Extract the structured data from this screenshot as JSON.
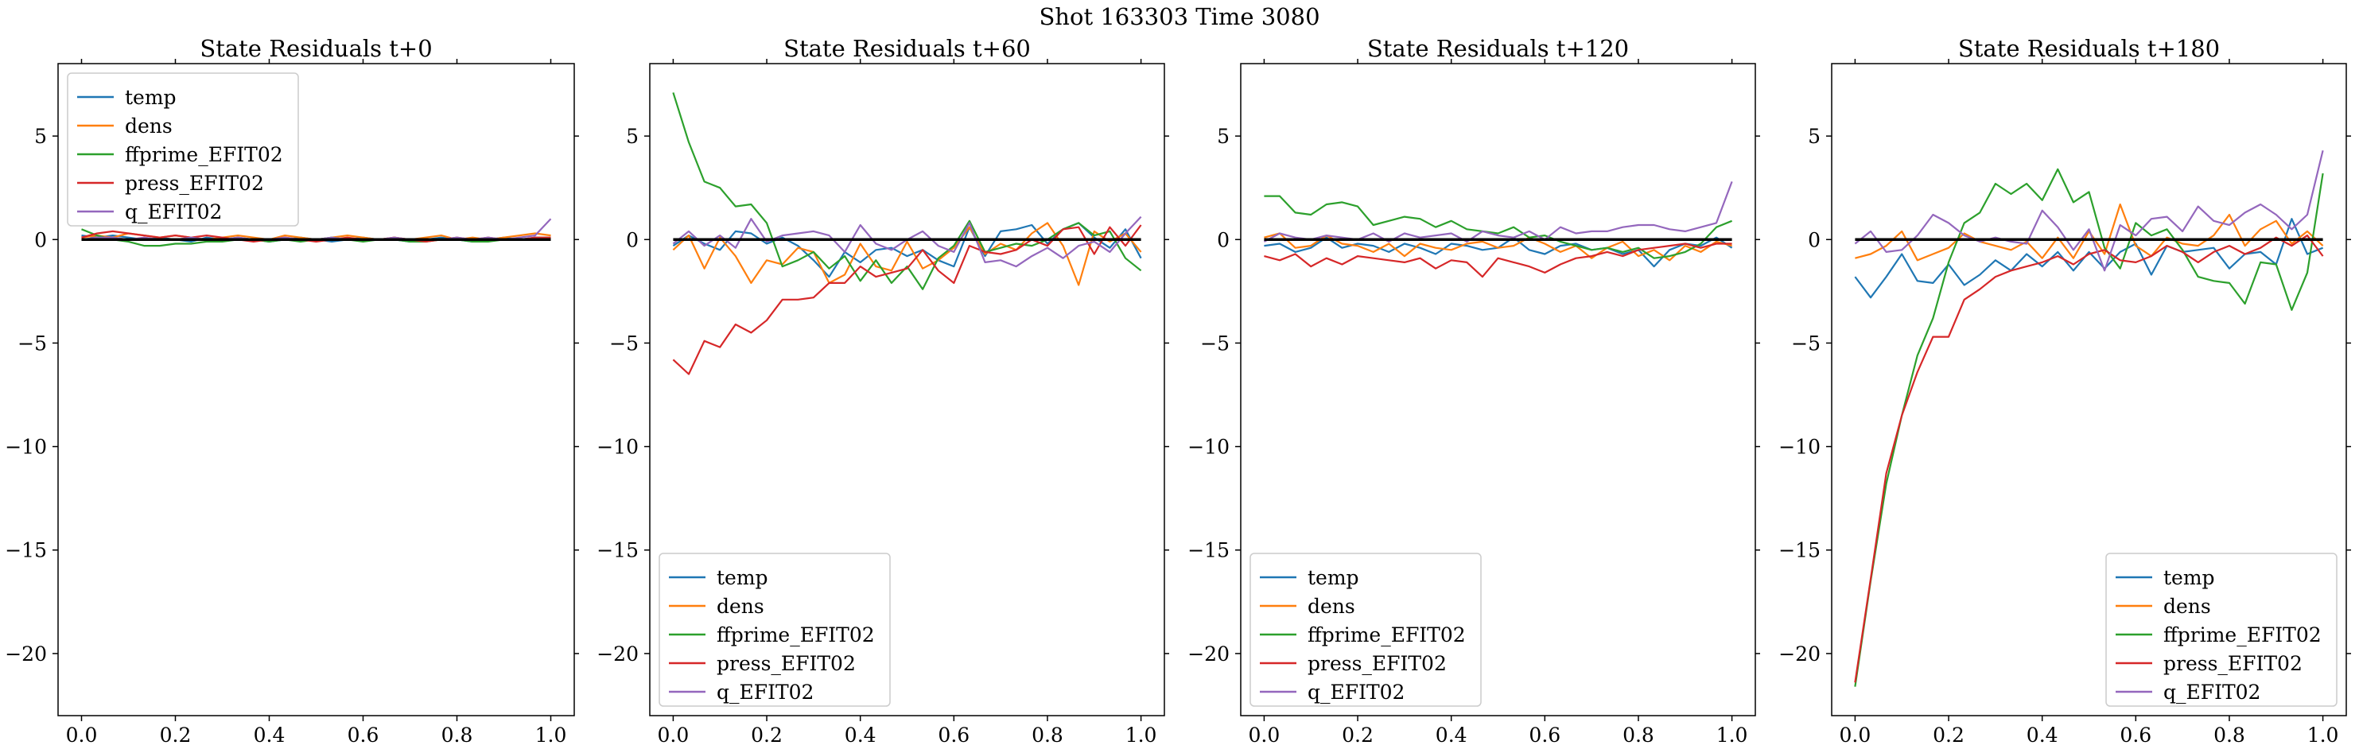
{
  "figure": {
    "suptitle": "Shot 163303   Time 3080"
  },
  "colors": {
    "temp": "#1f77b4",
    "dens": "#ff7f0e",
    "ffprime_EFIT02": "#2ca02c",
    "press_EFIT02": "#d62728",
    "q_EFIT02": "#9467bd",
    "zero_line": "#000000"
  },
  "chart_data": [
    {
      "type": "line",
      "title": "State Residuals t+0",
      "xlabel": "",
      "ylabel": "",
      "xlim": [
        -0.05,
        1.05
      ],
      "ylim": [
        -23,
        8.5
      ],
      "xticks": [
        "0.0",
        "0.2",
        "0.4",
        "0.6",
        "0.8",
        "1.0"
      ],
      "yticks": [
        "5",
        "0",
        "−5",
        "−10",
        "−15",
        "−20"
      ],
      "legend_position": "upper-left",
      "zero_line": true,
      "series": [
        {
          "name": "temp",
          "y": [
            0.2,
            0.1,
            0.2,
            0.1,
            0.0,
            0.1,
            0.0,
            -0.1,
            0.1,
            0.0,
            0.1,
            0.0,
            -0.1,
            0.0,
            0.1,
            0.0,
            -0.1,
            0.0,
            0.1,
            0.0,
            0.0,
            -0.1,
            0.0,
            0.1,
            0.0,
            -0.1,
            0.0,
            0.1,
            0.0,
            0.1,
            0.1
          ]
        },
        {
          "name": "dens",
          "y": [
            0.1,
            0.2,
            0.1,
            0.3,
            0.2,
            0.1,
            0.2,
            0.1,
            0.0,
            0.1,
            0.2,
            0.1,
            0.0,
            0.2,
            0.1,
            0.0,
            0.1,
            0.2,
            0.1,
            0.0,
            0.1,
            0.0,
            0.1,
            0.2,
            0.0,
            0.1,
            0.0,
            0.1,
            0.2,
            0.3,
            0.2
          ]
        },
        {
          "name": "ffprime_EFIT02",
          "y": [
            0.5,
            0.2,
            0.0,
            -0.1,
            -0.3,
            -0.3,
            -0.2,
            -0.2,
            -0.1,
            -0.1,
            0.0,
            0.0,
            -0.1,
            0.0,
            -0.1,
            0.0,
            0.1,
            0.0,
            -0.1,
            0.0,
            0.0,
            -0.1,
            -0.1,
            0.0,
            0.0,
            -0.1,
            -0.1,
            0.0,
            0.0,
            0.0,
            0.1
          ]
        },
        {
          "name": "press_EFIT02",
          "y": [
            0.1,
            0.3,
            0.4,
            0.3,
            0.2,
            0.1,
            0.2,
            0.1,
            0.2,
            0.1,
            0.0,
            -0.1,
            0.0,
            0.1,
            0.0,
            -0.1,
            0.0,
            0.1,
            0.0,
            0.0,
            0.1,
            0.0,
            -0.1,
            0.0,
            0.1,
            0.0,
            0.1,
            0.0,
            0.0,
            0.1,
            0.1
          ]
        },
        {
          "name": "q_EFIT02",
          "y": [
            0.0,
            0.1,
            0.1,
            0.0,
            0.1,
            0.0,
            0.0,
            0.1,
            0.0,
            0.0,
            0.1,
            0.0,
            0.0,
            0.1,
            0.0,
            0.0,
            0.1,
            0.0,
            0.0,
            0.0,
            0.1,
            0.0,
            0.0,
            0.0,
            0.1,
            0.0,
            0.1,
            0.0,
            0.1,
            0.2,
            1.0
          ]
        }
      ]
    },
    {
      "type": "line",
      "title": "State Residuals t+60",
      "xlabel": "",
      "ylabel": "",
      "xlim": [
        -0.05,
        1.05
      ],
      "ylim": [
        -23,
        8.5
      ],
      "xticks": [
        "0.0",
        "0.2",
        "0.4",
        "0.6",
        "0.8",
        "1.0"
      ],
      "yticks": [
        "5",
        "0",
        "−5",
        "−10",
        "−15",
        "−20"
      ],
      "legend_position": "lower-left",
      "zero_line": true,
      "series": [
        {
          "name": "temp",
          "y": [
            -0.3,
            0.2,
            -0.2,
            -0.5,
            0.4,
            0.3,
            -0.2,
            0.1,
            -0.3,
            -1.0,
            -1.8,
            -0.6,
            -1.1,
            -0.5,
            -0.4,
            -0.8,
            -0.5,
            -1.0,
            -1.3,
            0.6,
            -0.8,
            0.4,
            0.5,
            0.7,
            -0.2,
            0.5,
            0.8,
            0.1,
            -0.4,
            0.5,
            -0.9
          ]
        },
        {
          "name": "dens",
          "y": [
            -0.5,
            0.2,
            -1.4,
            0.1,
            -0.8,
            -2.1,
            -1.0,
            -1.2,
            -0.4,
            -0.6,
            -2.1,
            -1.7,
            -0.2,
            -1.3,
            -1.5,
            -0.1,
            -1.4,
            -1.0,
            -0.4,
            0.6,
            -0.7,
            -0.2,
            -0.5,
            0.3,
            0.8,
            -0.3,
            -2.2,
            0.4,
            -0.1,
            0.3,
            -0.6
          ]
        },
        {
          "name": "ffprime_EFIT02",
          "y": [
            7.1,
            4.7,
            2.8,
            2.5,
            1.6,
            1.7,
            0.8,
            -1.3,
            -1.0,
            -0.6,
            -1.4,
            -0.8,
            -2.0,
            -1.0,
            -2.1,
            -1.3,
            -2.4,
            -0.9,
            -0.3,
            0.9,
            -0.6,
            -0.4,
            -0.2,
            -0.3,
            0.0,
            0.5,
            0.8,
            0.2,
            0.4,
            -0.9,
            -1.5
          ]
        },
        {
          "name": "press_EFIT02",
          "y": [
            -5.8,
            -6.5,
            -4.9,
            -5.2,
            -4.1,
            -4.5,
            -3.9,
            -2.9,
            -2.9,
            -2.8,
            -2.1,
            -2.1,
            -1.3,
            -1.8,
            -1.6,
            -1.4,
            -0.5,
            -1.5,
            -2.1,
            -0.3,
            -0.6,
            -0.7,
            -0.5,
            0.0,
            -0.3,
            0.5,
            0.6,
            -0.7,
            0.6,
            -0.3,
            0.7
          ]
        },
        {
          "name": "q_EFIT02",
          "y": [
            -0.2,
            0.4,
            -0.3,
            0.2,
            -0.4,
            1.0,
            -0.1,
            0.2,
            0.3,
            0.4,
            0.2,
            -0.6,
            0.7,
            -0.2,
            -0.5,
            0.0,
            0.4,
            -0.3,
            -0.6,
            0.8,
            -1.1,
            -1.0,
            -1.3,
            -0.8,
            -0.4,
            -0.9,
            -0.3,
            -0.1,
            -0.6,
            0.3,
            1.1
          ]
        }
      ]
    },
    {
      "type": "line",
      "title": "State Residuals t+120",
      "xlabel": "",
      "ylabel": "",
      "xlim": [
        -0.05,
        1.05
      ],
      "ylim": [
        -23,
        8.5
      ],
      "xticks": [
        "0.0",
        "0.2",
        "0.4",
        "0.6",
        "0.8",
        "1.0"
      ],
      "yticks": [
        "5",
        "0",
        "−5",
        "−10",
        "−15",
        "−20"
      ],
      "legend_position": "lower-left",
      "zero_line": true,
      "series": [
        {
          "name": "temp",
          "y": [
            -0.3,
            -0.2,
            -0.6,
            -0.4,
            0.1,
            -0.4,
            -0.2,
            -0.3,
            -0.6,
            -0.2,
            -0.4,
            -0.7,
            -0.2,
            -0.3,
            -0.5,
            -0.4,
            0.1,
            -0.5,
            -0.7,
            -0.3,
            -0.2,
            -0.5,
            -0.4,
            -0.7,
            -0.5,
            -1.3,
            -0.5,
            -0.2,
            -0.3,
            0.1,
            -0.4
          ]
        },
        {
          "name": "dens",
          "y": [
            0.1,
            0.3,
            -0.4,
            -0.3,
            0.2,
            -0.2,
            -0.3,
            -0.6,
            -0.2,
            -0.8,
            -0.2,
            -0.4,
            -0.5,
            -0.2,
            -0.1,
            -0.4,
            -0.3,
            0.1,
            -0.2,
            -0.6,
            -0.3,
            -0.9,
            -0.4,
            -0.1,
            -0.8,
            -0.5,
            -1.0,
            -0.3,
            -0.6,
            -0.1,
            -0.3
          ]
        },
        {
          "name": "ffprime_EFIT02",
          "y": [
            2.1,
            2.1,
            1.3,
            1.2,
            1.7,
            1.8,
            1.6,
            0.7,
            0.9,
            1.1,
            1.0,
            0.6,
            0.9,
            0.5,
            0.4,
            0.3,
            0.6,
            0.1,
            0.2,
            -0.1,
            -0.3,
            -0.5,
            -0.4,
            -0.6,
            -0.4,
            -0.9,
            -0.8,
            -0.6,
            -0.2,
            0.6,
            0.9
          ]
        },
        {
          "name": "press_EFIT02",
          "y": [
            -0.8,
            -1.0,
            -0.7,
            -1.3,
            -0.9,
            -1.2,
            -0.8,
            -0.9,
            -1.0,
            -1.1,
            -0.9,
            -1.4,
            -1.0,
            -1.1,
            -1.8,
            -0.9,
            -1.1,
            -1.3,
            -1.6,
            -1.2,
            -0.9,
            -0.8,
            -0.6,
            -0.8,
            -0.5,
            -0.4,
            -0.3,
            -0.2,
            -0.4,
            -0.2,
            -0.2
          ]
        },
        {
          "name": "q_EFIT02",
          "y": [
            -0.1,
            0.3,
            0.1,
            0.0,
            0.2,
            0.1,
            0.0,
            0.3,
            -0.1,
            0.3,
            0.1,
            0.2,
            0.3,
            -0.1,
            0.4,
            0.2,
            0.1,
            0.4,
            0.0,
            0.6,
            0.3,
            0.4,
            0.4,
            0.6,
            0.7,
            0.7,
            0.5,
            0.4,
            0.6,
            0.8,
            2.8
          ]
        }
      ]
    },
    {
      "type": "line",
      "title": "State Residuals t+180",
      "xlabel": "",
      "ylabel": "",
      "xlim": [
        -0.05,
        1.05
      ],
      "ylim": [
        -23,
        8.5
      ],
      "xticks": [
        "0.0",
        "0.2",
        "0.4",
        "0.6",
        "0.8",
        "1.0"
      ],
      "yticks": [
        "5",
        "0",
        "−5",
        "−10",
        "−15",
        "−20"
      ],
      "legend_position": "lower-right",
      "zero_line": true,
      "series": [
        {
          "name": "temp",
          "y": [
            -1.8,
            -2.8,
            -1.8,
            -0.7,
            -2.0,
            -2.1,
            -1.2,
            -2.2,
            -1.7,
            -1.0,
            -1.5,
            -0.7,
            -1.3,
            -0.6,
            -1.5,
            -0.6,
            -1.4,
            -0.6,
            -0.2,
            -1.7,
            -0.3,
            -0.6,
            -0.5,
            -0.4,
            -1.4,
            -0.7,
            -0.6,
            -1.2,
            1.0,
            -0.7,
            -0.4
          ]
        },
        {
          "name": "dens",
          "y": [
            -0.9,
            -0.7,
            -0.3,
            0.4,
            -1.0,
            -0.7,
            -0.4,
            0.3,
            -0.1,
            -0.3,
            -0.5,
            -0.1,
            -0.9,
            0.1,
            -0.9,
            0.4,
            -0.7,
            1.7,
            -0.3,
            -0.8,
            0.1,
            -0.2,
            -0.3,
            0.2,
            1.2,
            -0.3,
            0.5,
            0.9,
            -0.2,
            0.4,
            -0.3
          ]
        },
        {
          "name": "ffprime_EFIT02",
          "y": [
            -21.6,
            -16.5,
            -11.8,
            -8.5,
            -5.6,
            -3.8,
            -1.1,
            0.8,
            1.3,
            2.7,
            2.2,
            2.7,
            1.9,
            3.4,
            1.8,
            2.3,
            -0.4,
            -1.4,
            0.8,
            0.2,
            0.5,
            -0.5,
            -1.8,
            -2.0,
            -2.1,
            -3.1,
            -1.1,
            -1.2,
            -3.4,
            -1.6,
            3.2
          ]
        },
        {
          "name": "press_EFIT02",
          "y": [
            -21.4,
            -16.4,
            -11.3,
            -8.5,
            -6.4,
            -4.7,
            -4.7,
            -2.9,
            -2.4,
            -1.8,
            -1.5,
            -1.3,
            -1.1,
            -0.8,
            -1.2,
            -0.7,
            -0.5,
            -1.0,
            -1.1,
            -0.8,
            -0.3,
            -0.6,
            -1.1,
            -0.6,
            -0.3,
            -0.7,
            -0.4,
            0.1,
            -0.3,
            0.2,
            -0.8
          ]
        },
        {
          "name": "q_EFIT02",
          "y": [
            -0.2,
            0.4,
            -0.6,
            -0.5,
            0.2,
            1.2,
            0.8,
            0.2,
            -0.1,
            0.1,
            -0.1,
            -0.2,
            1.4,
            0.6,
            -0.5,
            0.5,
            -1.5,
            0.7,
            0.2,
            1.0,
            1.1,
            0.4,
            1.6,
            0.9,
            0.7,
            1.3,
            1.7,
            1.2,
            0.5,
            1.2,
            4.3
          ]
        }
      ]
    }
  ]
}
